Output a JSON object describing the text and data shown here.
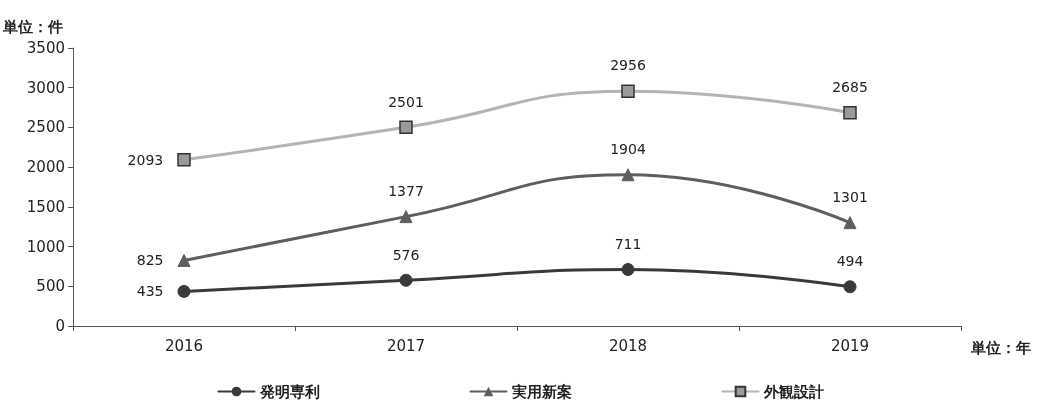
{
  "chart_data": {
    "type": "line",
    "ylabel": "単位：件",
    "xlabel": "単位：年",
    "categories": [
      "2016",
      "2017",
      "2018",
      "2019"
    ],
    "series": [
      {
        "name": "発明専利",
        "color": "#3a3a3a",
        "marker": "circle",
        "values": [
          435,
          576,
          711,
          494
        ]
      },
      {
        "name": "実用新案",
        "color": "#5e5e5e",
        "marker": "triangle",
        "values": [
          825,
          1377,
          1904,
          1301
        ]
      },
      {
        "name": "外観設計",
        "color": "#b4b4b4",
        "marker": "square",
        "values": [
          2093,
          2501,
          2956,
          2685
        ]
      }
    ],
    "ylim": [
      0,
      3500
    ],
    "yticks": [
      0,
      500,
      1000,
      1500,
      2000,
      2500,
      3000,
      3500
    ],
    "grid": false,
    "legend": "bottom",
    "data_labels": true,
    "line_style": "solid"
  }
}
